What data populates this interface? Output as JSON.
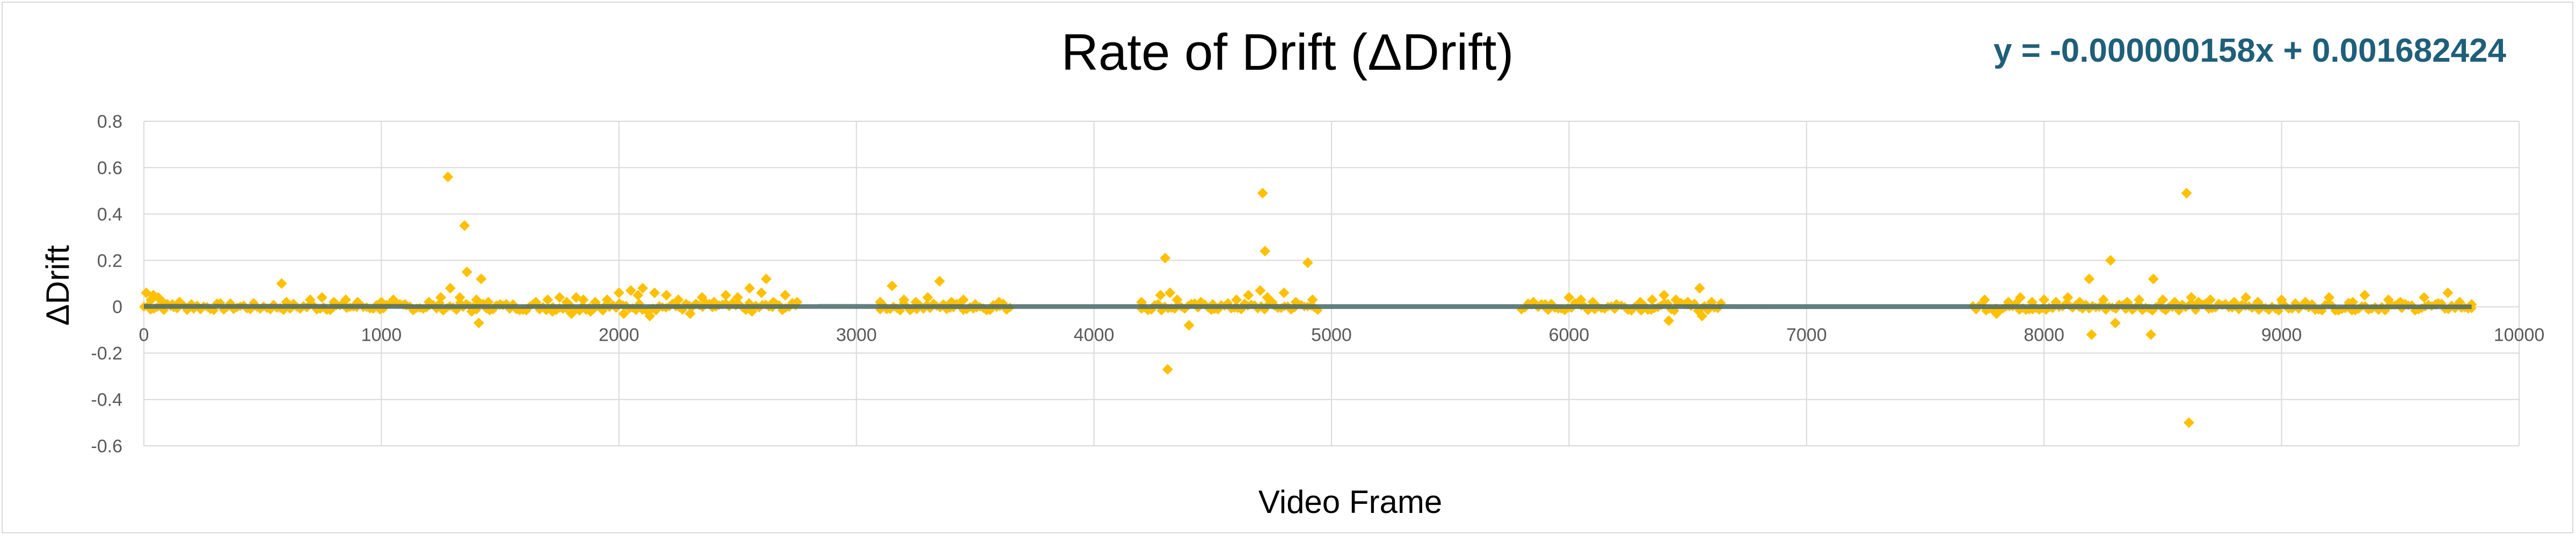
{
  "chart_data": {
    "type": "scatter",
    "title": "Rate of Drift (ΔDrift)",
    "xlabel": "Video Frame",
    "ylabel": "ΔDrift",
    "xlim": [
      0,
      10000
    ],
    "ylim": [
      -0.6,
      0.8
    ],
    "x_ticks": [
      0,
      1000,
      2000,
      3000,
      4000,
      5000,
      6000,
      7000,
      8000,
      9000,
      10000
    ],
    "y_ticks": [
      -0.6,
      -0.4,
      -0.2,
      0,
      0.2,
      0.4,
      0.6,
      0.8
    ],
    "grid": true,
    "legend": "none",
    "trendline": {
      "equation": "y = -0.000000158x + 0.001682424",
      "slope": -1.58e-07,
      "intercept": 0.001682424,
      "x_range": [
        0,
        9800
      ]
    },
    "series": [
      {
        "marker": "diamond",
        "points": [
          [
            10,
            0.06
          ],
          [
            30,
            0.03
          ],
          [
            40,
            0.05
          ],
          [
            60,
            0.04
          ],
          [
            80,
            0.02
          ],
          [
            120,
            0.01
          ],
          [
            150,
            0.02
          ],
          [
            200,
            0.01
          ],
          [
            580,
            0.1
          ],
          [
            600,
            0.02
          ],
          [
            700,
            0.03
          ],
          [
            750,
            0.04
          ],
          [
            800,
            0.02
          ],
          [
            850,
            0.03
          ],
          [
            900,
            0.02
          ],
          [
            1000,
            0.02
          ],
          [
            1050,
            0.03
          ],
          [
            1100,
            0.01
          ],
          [
            1200,
            0.02
          ],
          [
            1250,
            0.04
          ],
          [
            1280,
            0.56
          ],
          [
            1290,
            0.08
          ],
          [
            1330,
            0.04
          ],
          [
            1350,
            0.35
          ],
          [
            1360,
            0.15
          ],
          [
            1380,
            -0.02
          ],
          [
            1400,
            0.03
          ],
          [
            1410,
            -0.07
          ],
          [
            1420,
            0.12
          ],
          [
            1450,
            0.02
          ],
          [
            1500,
            0.01
          ],
          [
            1650,
            0.02
          ],
          [
            1700,
            0.03
          ],
          [
            1720,
            -0.02
          ],
          [
            1750,
            0.04
          ],
          [
            1780,
            0.02
          ],
          [
            1800,
            -0.03
          ],
          [
            1820,
            0.04
          ],
          [
            1850,
            0.03
          ],
          [
            1880,
            -0.02
          ],
          [
            1900,
            0.02
          ],
          [
            1950,
            0.03
          ],
          [
            2000,
            0.06
          ],
          [
            2020,
            -0.03
          ],
          [
            2050,
            0.07
          ],
          [
            2080,
            0.05
          ],
          [
            2100,
            0.08
          ],
          [
            2130,
            -0.04
          ],
          [
            2150,
            0.06
          ],
          [
            2200,
            0.05
          ],
          [
            2250,
            0.03
          ],
          [
            2300,
            -0.03
          ],
          [
            2350,
            0.04
          ],
          [
            2400,
            0.02
          ],
          [
            2450,
            0.05
          ],
          [
            2500,
            0.04
          ],
          [
            2550,
            0.08
          ],
          [
            2560,
            -0.02
          ],
          [
            2600,
            0.06
          ],
          [
            2620,
            0.12
          ],
          [
            2650,
            0.02
          ],
          [
            2700,
            0.05
          ],
          [
            2750,
            0.02
          ],
          [
            3100,
            0.02
          ],
          [
            3150,
            0.09
          ],
          [
            3200,
            0.03
          ],
          [
            3250,
            0.02
          ],
          [
            3300,
            0.04
          ],
          [
            3350,
            0.11
          ],
          [
            3400,
            0.02
          ],
          [
            3450,
            0.03
          ],
          [
            3500,
            0.01
          ],
          [
            3600,
            0.02
          ],
          [
            4200,
            0.02
          ],
          [
            4280,
            0.05
          ],
          [
            4300,
            0.21
          ],
          [
            4310,
            -0.27
          ],
          [
            4320,
            0.06
          ],
          [
            4350,
            0.03
          ],
          [
            4400,
            -0.08
          ],
          [
            4450,
            0.02
          ],
          [
            4500,
            0.01
          ],
          [
            4600,
            0.03
          ],
          [
            4650,
            0.05
          ],
          [
            4700,
            0.07
          ],
          [
            4710,
            0.49
          ],
          [
            4720,
            0.24
          ],
          [
            4730,
            0.04
          ],
          [
            4750,
            0.02
          ],
          [
            4800,
            0.06
          ],
          [
            4850,
            0.02
          ],
          [
            4900,
            0.19
          ],
          [
            4920,
            0.03
          ],
          [
            5850,
            0.02
          ],
          [
            5900,
            0.01
          ],
          [
            6000,
            0.04
          ],
          [
            6050,
            0.03
          ],
          [
            6100,
            0.02
          ],
          [
            6200,
            0.01
          ],
          [
            6300,
            0.02
          ],
          [
            6350,
            0.03
          ],
          [
            6400,
            0.05
          ],
          [
            6420,
            -0.06
          ],
          [
            6450,
            0.03
          ],
          [
            6500,
            0.02
          ],
          [
            6550,
            0.08
          ],
          [
            6560,
            -0.04
          ],
          [
            6600,
            0.02
          ],
          [
            7750,
            0.03
          ],
          [
            7800,
            -0.03
          ],
          [
            7850,
            0.02
          ],
          [
            7900,
            0.04
          ],
          [
            7950,
            0.02
          ],
          [
            8000,
            0.03
          ],
          [
            8050,
            0.02
          ],
          [
            8100,
            0.04
          ],
          [
            8150,
            0.02
          ],
          [
            8190,
            0.12
          ],
          [
            8200,
            -0.12
          ],
          [
            8250,
            0.03
          ],
          [
            8280,
            0.2
          ],
          [
            8300,
            -0.07
          ],
          [
            8350,
            0.02
          ],
          [
            8400,
            0.03
          ],
          [
            8450,
            -0.12
          ],
          [
            8460,
            0.12
          ],
          [
            8500,
            0.03
          ],
          [
            8550,
            0.02
          ],
          [
            8600,
            0.49
          ],
          [
            8610,
            -0.5
          ],
          [
            8620,
            0.04
          ],
          [
            8650,
            0.02
          ],
          [
            8700,
            0.03
          ],
          [
            8800,
            0.02
          ],
          [
            8850,
            0.04
          ],
          [
            8900,
            0.02
          ],
          [
            9000,
            0.03
          ],
          [
            9100,
            0.02
          ],
          [
            9200,
            0.04
          ],
          [
            9300,
            0.02
          ],
          [
            9350,
            0.05
          ],
          [
            9450,
            0.03
          ],
          [
            9500,
            0.02
          ],
          [
            9600,
            0.04
          ],
          [
            9650,
            0.01
          ],
          [
            9700,
            0.06
          ],
          [
            9750,
            0.02
          ],
          [
            9800,
            0.01
          ]
        ],
        "dense_ranges": [
          [
            0,
            2750
          ],
          [
            3100,
            3650
          ],
          [
            4200,
            4950
          ],
          [
            5800,
            6650
          ],
          [
            7700,
            9800
          ]
        ]
      }
    ],
    "colors": {
      "marker": "#ffc000",
      "trendline": "#4a6b6b",
      "equation": "#1f5f7a",
      "grid": "#d9d9d9",
      "ticks": "#595959"
    }
  }
}
